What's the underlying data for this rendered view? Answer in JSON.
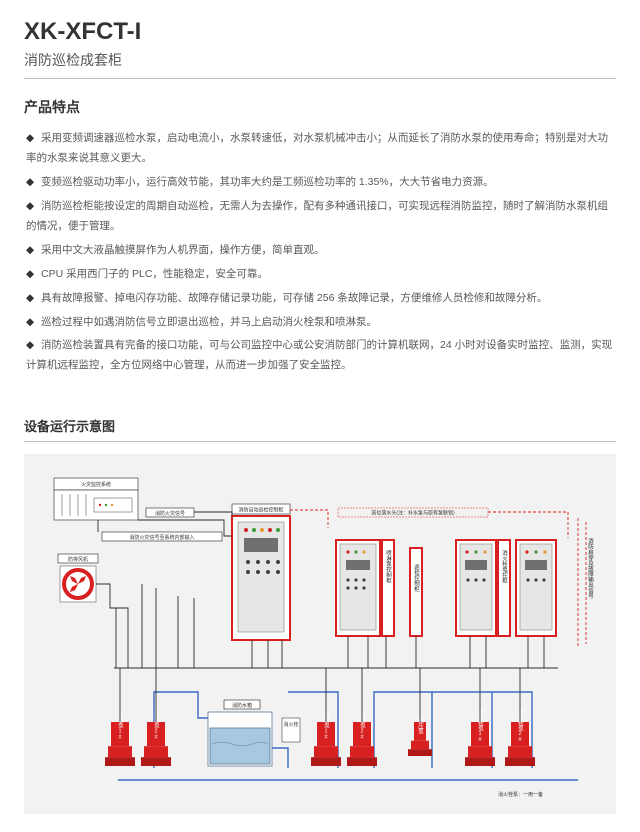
{
  "header": {
    "product_code": "XK-XFCT-I",
    "product_name": "消防巡检成套柜"
  },
  "features": {
    "title": "产品特点",
    "items": [
      "采用变频调速器巡检水泵，启动电流小，水泵转速低，对水泵机械冲击小；从而延长了消防水泵的使用寿命；特别是对大功率的水泵来说其意义更大。",
      "变频巡检驱动功率小，运行高效节能，其功率大约是工频巡检功率的 1.35%，大大节省电力资源。",
      "消防巡检柜能按设定的周期自动巡检，无需人为去操作，配有多种通讯接口，可实现远程消防监控，随时了解消防水泵机组的情况，便于管理。",
      "采用中文大液晶触摸屏作为人机界面，操作方便，简单直观。",
      "CPU 采用西门子的 PLC，性能稳定，安全可靠。",
      "具有故障报警、掉电闪存功能、故障存储记录功能，可存储 256 条故障记录，方便维修人员检修和故障分析。",
      "巡检过程中如遇消防信号立即退出巡检，并马上启动消火栓泵和喷淋泵。",
      "消防巡检装置具有完备的接口功能，可与公司监控中心或公安消防部门的计算机联网，24 小时对设备实时监控、监测，实现计算机远程监控，全方位网络中心管理，从而进一步加强了安全监控。"
    ]
  },
  "diagram": {
    "title": "设备运行示意图",
    "background_color": "#f2f2f2",
    "colors": {
      "red": "#d82020",
      "black": "#2a2a2a",
      "blue": "#3a6ac8",
      "tank": "#a8c8e0",
      "cabinet_fill": "#ffffff",
      "panel": "#e6e6e6"
    },
    "labels": {
      "alarm_system": "火灾监控系统",
      "fire_signal": "消防火灾信号",
      "fire_signal_to_plc": "消防火灾信号至系统内部输入",
      "fan": "防排风机",
      "auto_inspect_cabinet": "消防自动巡检控制柜",
      "spray_cabinet": "喷淋泵控制柜",
      "control_side": "巡检控制柜",
      "hydrant_cabinet": "消火栓电控柜",
      "hydrant_box": "消防水箱",
      "hydrant_text": "消火栓",
      "tank_note": "高位落水头(注：补水泵与原有泵联锁)",
      "output_note": "消防启停及故障输出信号",
      "pumps": {
        "makeup1": "补水泵1#",
        "makeup2": "补水泵2#",
        "spray1": "喷淋泵1#",
        "spray2": "喷淋泵2#",
        "stable": "稳压泵",
        "hydrant1": "消火栓泵1#",
        "hydrant2": "消火栓泵2#"
      },
      "config_note": "消火栓泵：一用一备"
    }
  }
}
